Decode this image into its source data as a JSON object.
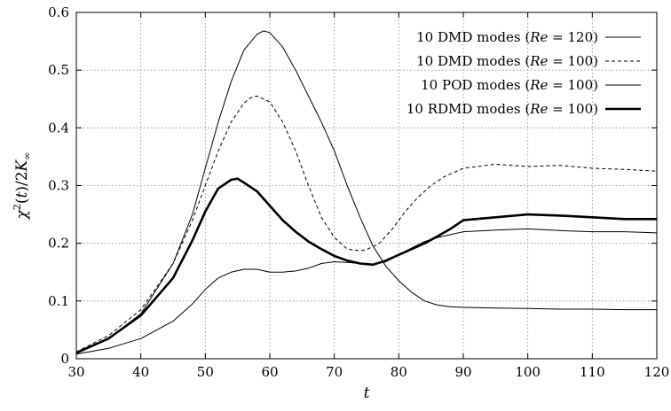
{
  "chart_data": {
    "type": "line",
    "title": "",
    "xlabel": "t",
    "ylabel": "χ²(t)/2K∞",
    "xlim": [
      30,
      120
    ],
    "ylim": [
      0,
      0.6
    ],
    "xticks": [
      30,
      40,
      50,
      60,
      70,
      80,
      90,
      100,
      110,
      120
    ],
    "yticks": [
      0,
      0.1,
      0.2,
      0.3,
      0.4,
      0.5,
      0.6
    ],
    "grid": true,
    "legend_position": "top-right",
    "series": [
      {
        "name": "10 DMD modes (Re = 120)",
        "style": "thin-solid",
        "x": [
          30,
          35,
          40,
          45,
          48,
          50,
          52,
          54,
          56,
          58,
          59,
          60,
          62,
          64,
          66,
          68,
          70,
          72,
          74,
          76,
          78,
          80,
          82,
          84,
          86,
          88,
          90,
          95,
          100,
          105,
          110,
          115,
          120
        ],
        "y": [
          0.012,
          0.035,
          0.078,
          0.165,
          0.25,
          0.33,
          0.41,
          0.48,
          0.535,
          0.562,
          0.568,
          0.565,
          0.54,
          0.5,
          0.455,
          0.41,
          0.36,
          0.3,
          0.245,
          0.195,
          0.16,
          0.135,
          0.115,
          0.1,
          0.093,
          0.09,
          0.089,
          0.088,
          0.087,
          0.086,
          0.086,
          0.085,
          0.085
        ]
      },
      {
        "name": "10 DMD modes (Re = 100)",
        "style": "dashed",
        "x": [
          30,
          35,
          40,
          45,
          48,
          50,
          52,
          54,
          56,
          57,
          58,
          60,
          62,
          64,
          66,
          68,
          70,
          72,
          74,
          75,
          77,
          79,
          81,
          83,
          85,
          87,
          90,
          95,
          100,
          105,
          110,
          115,
          120
        ],
        "y": [
          0.012,
          0.04,
          0.085,
          0.165,
          0.24,
          0.3,
          0.36,
          0.41,
          0.443,
          0.452,
          0.455,
          0.445,
          0.41,
          0.36,
          0.3,
          0.245,
          0.21,
          0.19,
          0.187,
          0.189,
          0.2,
          0.225,
          0.255,
          0.28,
          0.3,
          0.315,
          0.33,
          0.337,
          0.333,
          0.335,
          0.33,
          0.328,
          0.325
        ]
      },
      {
        "name": "10 POD modes (Re = 100)",
        "style": "thin-solid",
        "x": [
          30,
          35,
          40,
          45,
          48,
          50,
          52,
          54,
          56,
          58,
          60,
          62,
          64,
          66,
          68,
          70,
          72,
          74,
          76,
          78,
          80,
          82,
          84,
          86,
          88,
          90,
          95,
          100,
          105,
          110,
          115,
          120
        ],
        "y": [
          0.008,
          0.018,
          0.035,
          0.065,
          0.095,
          0.12,
          0.14,
          0.15,
          0.155,
          0.155,
          0.15,
          0.15,
          0.152,
          0.157,
          0.165,
          0.168,
          0.167,
          0.165,
          0.163,
          0.168,
          0.18,
          0.192,
          0.203,
          0.21,
          0.215,
          0.22,
          0.223,
          0.225,
          0.222,
          0.22,
          0.22,
          0.218
        ]
      },
      {
        "name": "10 RDMD modes (Re = 100)",
        "style": "thick-solid",
        "x": [
          30,
          35,
          40,
          45,
          48,
          50,
          52,
          54,
          55,
          56,
          58,
          60,
          62,
          64,
          66,
          68,
          70,
          72,
          74,
          76,
          78,
          80,
          82,
          84,
          86,
          88,
          90,
          95,
          100,
          105,
          110,
          115,
          120
        ],
        "y": [
          0.01,
          0.035,
          0.075,
          0.14,
          0.205,
          0.255,
          0.295,
          0.31,
          0.312,
          0.305,
          0.29,
          0.265,
          0.24,
          0.22,
          0.203,
          0.19,
          0.178,
          0.17,
          0.165,
          0.163,
          0.17,
          0.18,
          0.19,
          0.2,
          0.212,
          0.225,
          0.24,
          0.245,
          0.25,
          0.248,
          0.245,
          0.242,
          0.242
        ]
      }
    ],
    "legend": [
      {
        "prefix": "10 DMD modes (",
        "var": "Re",
        "suffix": " = 120)"
      },
      {
        "prefix": "10 DMD modes (",
        "var": "Re",
        "suffix": " = 100)"
      },
      {
        "prefix": "10 POD modes (",
        "var": "Re",
        "suffix": " = 100)"
      },
      {
        "prefix": "10 RDMD modes (",
        "var": "Re",
        "suffix": " = 100)"
      }
    ]
  }
}
